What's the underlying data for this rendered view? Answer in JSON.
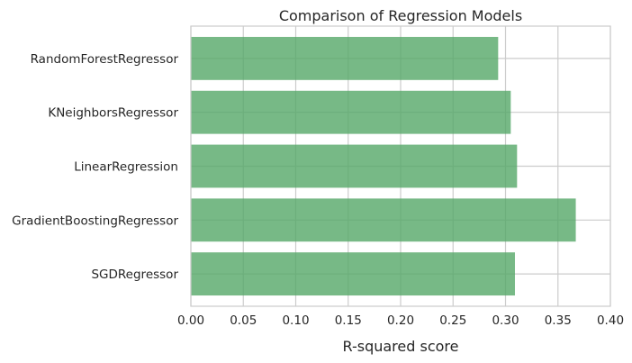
{
  "chart_data": {
    "type": "bar",
    "orientation": "horizontal",
    "title": "Comparison of Regression Models",
    "xlabel": "R-squared score",
    "ylabel": "",
    "categories": [
      "SGDRegressor",
      "GradientBoostingRegressor",
      "LinearRegression",
      "KNeighborsRegressor",
      "RandomForestRegressor"
    ],
    "values": [
      0.309,
      0.367,
      0.311,
      0.305,
      0.293
    ],
    "xlim": [
      0.0,
      0.4
    ],
    "xticks": [
      "0.00",
      "0.05",
      "0.10",
      "0.15",
      "0.20",
      "0.25",
      "0.30",
      "0.35",
      "0.40"
    ],
    "grid": true,
    "bar_color": "#55a868"
  }
}
